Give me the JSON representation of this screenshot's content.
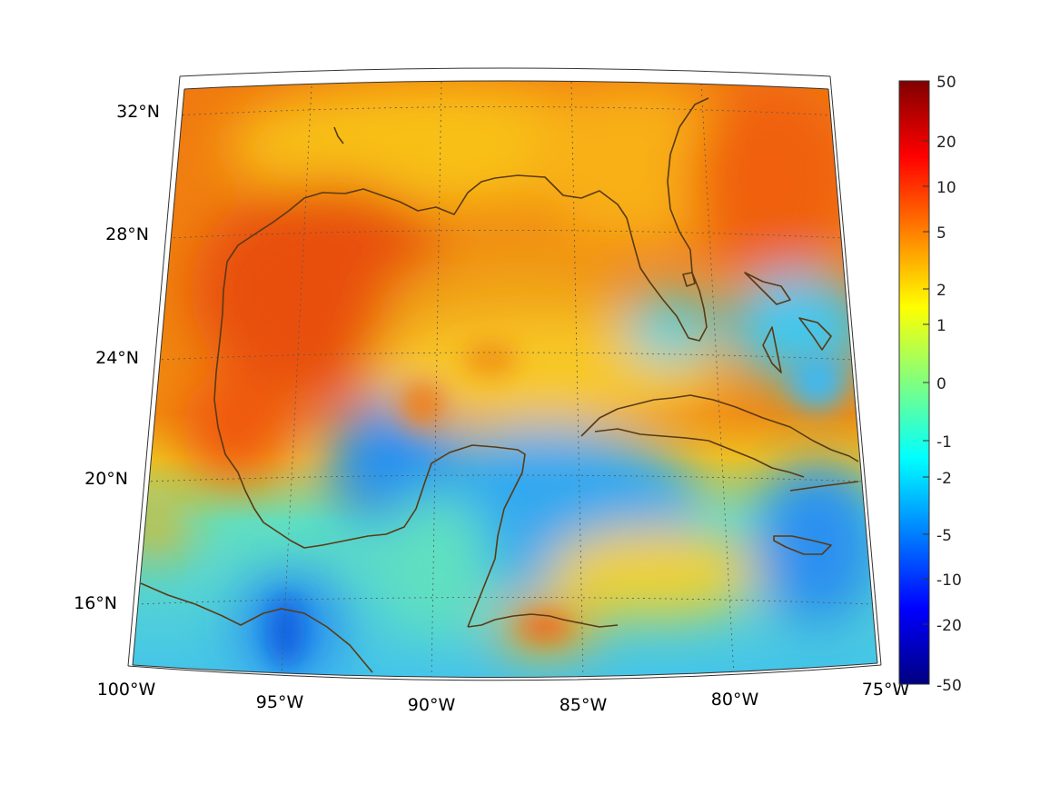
{
  "map": {
    "lat_labels": [
      "32°N",
      "28°N",
      "24°N",
      "20°N",
      "16°N"
    ],
    "lon_labels": [
      "100°W",
      "95°W",
      "90°W",
      "85°W",
      "80°W",
      "75°W"
    ]
  },
  "colorbar": {
    "tick_labels": [
      "50",
      "20",
      "10",
      "5",
      "2",
      "1",
      "0",
      "-1",
      "-2",
      "-5",
      "-10",
      "-20",
      "-50"
    ]
  },
  "colors": {
    "coastline": "#5a3a14",
    "colorbar_top": "#800000",
    "colorbar_mid": "#80ff80",
    "colorbar_bottom": "#000080"
  }
}
